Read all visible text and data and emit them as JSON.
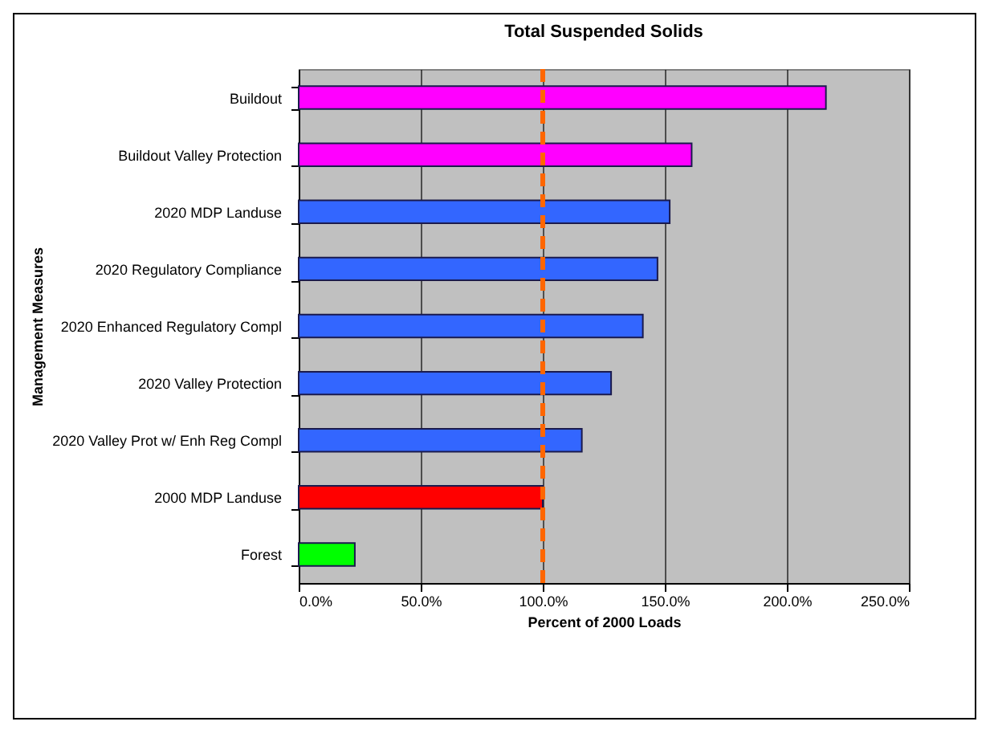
{
  "chart_data": {
    "type": "bar",
    "orientation": "horizontal",
    "title": "Total Suspended Solids",
    "xlabel": "Percent of 2000 Loads",
    "ylabel": "Management Measures",
    "categories": [
      "Buildout",
      "Buildout Valley Protection",
      "2020 MDP Landuse",
      "2020 Regulatory Compliance",
      "2020 Enhanced Regulatory Compl",
      "2020 Valley Protection",
      "2020 Valley Prot w/ Enh Reg Compl",
      "2000 MDP Landuse",
      "Forest"
    ],
    "values": [
      216,
      161,
      152,
      147,
      141,
      128,
      116,
      100,
      23
    ],
    "colors": [
      "#ff00ff",
      "#ff00ff",
      "#3366ff",
      "#3366ff",
      "#3366ff",
      "#3366ff",
      "#3366ff",
      "#ff0000",
      "#00ff00"
    ],
    "xlim": [
      0,
      250
    ],
    "xticks": [
      {
        "value": 0,
        "label": "0.0%"
      },
      {
        "value": 50,
        "label": "50.0%"
      },
      {
        "value": 100,
        "label": "100.0%"
      },
      {
        "value": 150,
        "label": "150.0%"
      },
      {
        "value": 200,
        "label": "200.0%"
      },
      {
        "value": 250,
        "label": "250.0%"
      }
    ],
    "grid": "x",
    "ref_lines": [
      {
        "axis": "x",
        "value": 100,
        "color": "#ff6600",
        "line_style": "dashed"
      }
    ]
  }
}
